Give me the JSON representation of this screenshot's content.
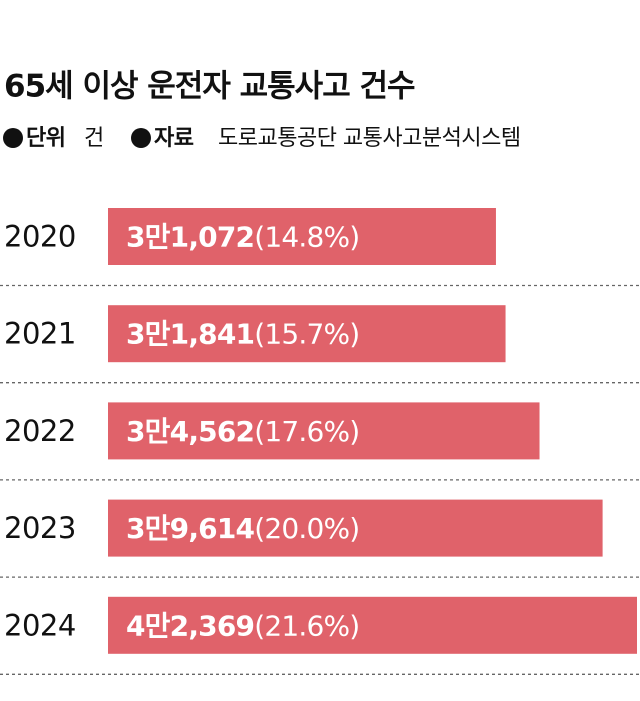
{
  "chart_data": {
    "type": "bar",
    "orientation": "horizontal",
    "title": "65세 이상 운전자 교통사고 건수",
    "unit_label": "단위",
    "unit": "건",
    "source_label": "자료",
    "source": "도로교통공단 교통사고분석시스템",
    "categories": [
      "2020",
      "2021",
      "2022",
      "2023",
      "2024"
    ],
    "values": [
      31072,
      31841,
      34562,
      39614,
      42369
    ],
    "value_labels": [
      "3만1,072",
      "3만1,841",
      "3만4,562",
      "3만9,614",
      "4만2,369"
    ],
    "share_labels": [
      "(14.8%)",
      "(15.7%)",
      "(17.6%)",
      "(20.0%)",
      "(21.6%)"
    ],
    "color": "#e0626a"
  }
}
